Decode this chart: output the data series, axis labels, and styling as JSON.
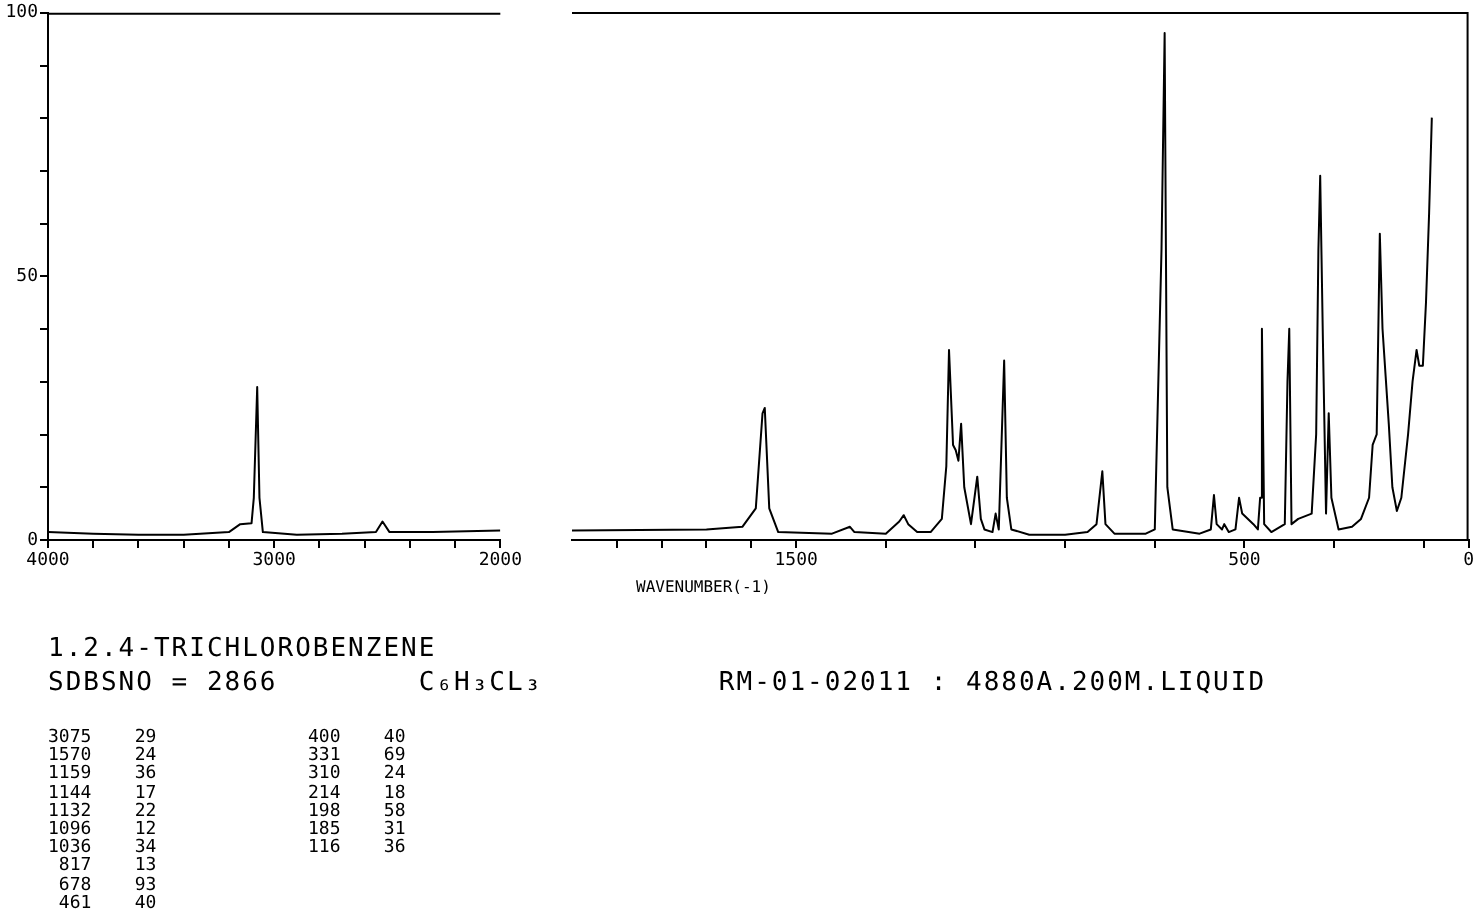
{
  "chart_data": [
    {
      "type": "line",
      "title": "1.2.4-TRICHLOROBENZENE",
      "subtitle": "SDBSNO = 2866        C₆H₃CL₃          RM-01-02011 : 4880A.200M.LIQUID",
      "annotations": [
        "3075    29",
        "1570    24",
        "1159    36",
        "1144    17",
        "1132    22",
        "1096    12",
        "1036    34",
        " 817    13",
        " 678    93",
        " 461    40",
        "400    40",
        "331    69",
        "310    24",
        "214    18",
        "198    58",
        "185    31",
        "116    36"
      ],
      "series": [
        {
          "color": "#000000",
          "x": [
            4000,
            3800,
            3600,
            3400,
            3200,
            3150,
            3100,
            3090,
            3075,
            3065,
            3050,
            2900,
            2700,
            2550,
            2521,
            2490,
            2300,
            2000
          ],
          "values": [
            1.5,
            1.2,
            1.0,
            1.0,
            1.5,
            3,
            3.2,
            8,
            29,
            8,
            1.5,
            1,
            1.2,
            1.5,
            3.5,
            1.5,
            1.5,
            1.8
          ]
        }
      ],
      "xlim": [
        4000,
        2000
      ],
      "xticks": [
        4000,
        {
          "value": 3800,
          "label": null
        },
        {
          "value": 3600,
          "label": null
        },
        {
          "value": 3400,
          "label": null
        },
        {
          "value": 3200,
          "label": null
        },
        3000,
        {
          "value": 2800,
          "label": null
        },
        {
          "value": 2600,
          "label": null
        },
        {
          "value": 2400,
          "label": null
        },
        {
          "value": 2200,
          "label": null
        },
        2000
      ],
      "ylim": [
        0,
        100
      ],
      "yticks": [
        0,
        {
          "value": 10,
          "label": null
        },
        {
          "value": 20,
          "label": null
        },
        {
          "value": 30,
          "label": null
        },
        {
          "value": 40,
          "label": null
        },
        50,
        {
          "value": 60,
          "label": null
        },
        {
          "value": 70,
          "label": null
        },
        {
          "value": 80,
          "label": null
        },
        {
          "value": 90,
          "label": null
        },
        100
      ],
      "grid": false,
      "legend": false,
      "marker": "none",
      "line_style": "solid"
    },
    {
      "type": "line",
      "xlabel": "WAVENUMBER(-1)",
      "series": [
        {
          "color": "#000000",
          "x": [
            2000,
            1700,
            1620,
            1590,
            1575,
            1570,
            1560,
            1540,
            1420,
            1380,
            1370,
            1300,
            1270,
            1260,
            1250,
            1230,
            1200,
            1175,
            1165,
            1159,
            1150,
            1144,
            1138,
            1132,
            1125,
            1110,
            1096,
            1088,
            1080,
            1062,
            1055,
            1048,
            1036,
            1030,
            1020,
            980,
            900,
            850,
            830,
            817,
            810,
            790,
            720,
            700,
            685,
            678,
            672,
            660,
            600,
            575,
            568,
            562,
            550,
            545,
            535,
            520,
            512,
            505,
            480,
            470,
            465,
            461,
            456,
            440,
            410,
            404,
            400,
            395,
            380,
            350,
            340,
            335,
            331,
            325,
            318,
            312,
            306,
            290,
            260,
            240,
            222,
            214,
            205,
            198,
            192,
            185,
            178,
            170,
            160,
            150,
            135,
            125,
            116,
            110,
            102,
            95,
            88,
            82
          ],
          "values": [
            1.8,
            2.0,
            2.5,
            6,
            24,
            25,
            6,
            1.5,
            1.2,
            2.5,
            1.5,
            1.2,
            3.5,
            4.7,
            3,
            1.5,
            1.5,
            4,
            14,
            36,
            18,
            17,
            15,
            22,
            10,
            3,
            12,
            4,
            2,
            1.5,
            5,
            2,
            34,
            8,
            2,
            1,
            1,
            1.5,
            3,
            13,
            3,
            1.2,
            1.2,
            2,
            55,
            96,
            10,
            2,
            1.2,
            2,
            8.5,
            3,
            2,
            3,
            1.5,
            2,
            8,
            5,
            3,
            2,
            8,
            40,
            3,
            1.5,
            3,
            30,
            40,
            3,
            4,
            5,
            20,
            55,
            69,
            38,
            5,
            24,
            8,
            2,
            2.5,
            4,
            8,
            18,
            20,
            58,
            40,
            31,
            22,
            10,
            5.5,
            8,
            20,
            30,
            36,
            33,
            33,
            45,
            62,
            80
          ]
        }
      ],
      "xlim": [
        2000,
        0
      ],
      "xticks": [
        {
          "value": 1900,
          "label": null
        },
        {
          "value": 1800,
          "label": null
        },
        {
          "value": 1700,
          "label": null
        },
        {
          "value": 1600,
          "label": null
        },
        1500,
        {
          "value": 1300,
          "label": null
        },
        {
          "value": 1100,
          "label": null
        },
        {
          "value": 900,
          "label": null
        },
        {
          "value": 700,
          "label": null
        },
        500,
        {
          "value": 300,
          "label": null
        },
        {
          "value": 100,
          "label": null
        },
        0
      ],
      "ylim": [
        0,
        100
      ],
      "yticks": [
        0,
        50,
        100
      ],
      "tick_labels": "x",
      "grid": false,
      "legend": false,
      "marker": "none",
      "line_style": "solid"
    }
  ]
}
